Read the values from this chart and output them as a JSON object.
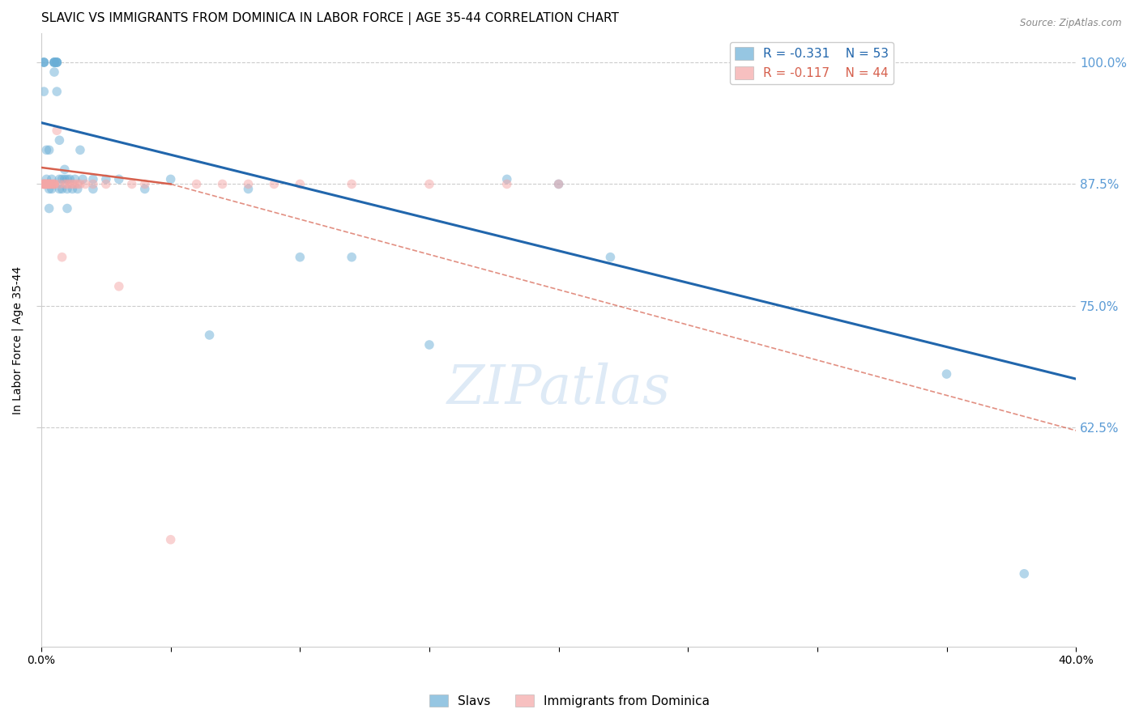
{
  "title": "SLAVIC VS IMMIGRANTS FROM DOMINICA IN LABOR FORCE | AGE 35-44 CORRELATION CHART",
  "source_text": "Source: ZipAtlas.com",
  "ylabel": "In Labor Force | Age 35-44",
  "xlim": [
    0.0,
    0.4
  ],
  "ylim": [
    0.4,
    1.03
  ],
  "yticks": [
    0.625,
    0.75,
    0.875,
    1.0
  ],
  "ytick_labels": [
    "62.5%",
    "75.0%",
    "87.5%",
    "100.0%"
  ],
  "xticks": [
    0.0,
    0.05,
    0.1,
    0.15,
    0.2,
    0.25,
    0.3,
    0.35,
    0.4
  ],
  "xtick_labels": [
    "0.0%",
    "",
    "",
    "",
    "",
    "",
    "",
    "",
    "40.0%"
  ],
  "blue_scatter": {
    "x": [
      0.001,
      0.001,
      0.001,
      0.001,
      0.002,
      0.002,
      0.003,
      0.003,
      0.003,
      0.004,
      0.004,
      0.005,
      0.005,
      0.005,
      0.005,
      0.005,
      0.006,
      0.006,
      0.006,
      0.006,
      0.006,
      0.007,
      0.007,
      0.007,
      0.008,
      0.008,
      0.009,
      0.009,
      0.01,
      0.01,
      0.01,
      0.011,
      0.012,
      0.013,
      0.014,
      0.015,
      0.016,
      0.02,
      0.02,
      0.025,
      0.03,
      0.04,
      0.05,
      0.065,
      0.08,
      0.1,
      0.12,
      0.15,
      0.18,
      0.2,
      0.22,
      0.35,
      0.38
    ],
    "y": [
      1.0,
      1.0,
      1.0,
      0.97,
      0.91,
      0.88,
      0.91,
      0.87,
      0.85,
      0.88,
      0.87,
      1.0,
      1.0,
      1.0,
      1.0,
      0.99,
      1.0,
      1.0,
      1.0,
      1.0,
      0.97,
      0.92,
      0.88,
      0.87,
      0.88,
      0.87,
      0.89,
      0.88,
      0.88,
      0.87,
      0.85,
      0.88,
      0.87,
      0.88,
      0.87,
      0.91,
      0.88,
      0.88,
      0.87,
      0.88,
      0.88,
      0.87,
      0.88,
      0.72,
      0.87,
      0.8,
      0.8,
      0.71,
      0.88,
      0.875,
      0.8,
      0.68,
      0.475
    ]
  },
  "pink_scatter": {
    "x": [
      0.001,
      0.001,
      0.001,
      0.001,
      0.001,
      0.002,
      0.002,
      0.002,
      0.002,
      0.003,
      0.003,
      0.003,
      0.003,
      0.004,
      0.004,
      0.005,
      0.005,
      0.005,
      0.006,
      0.007,
      0.008,
      0.009,
      0.01,
      0.011,
      0.012,
      0.013,
      0.014,
      0.015,
      0.017,
      0.02,
      0.025,
      0.03,
      0.035,
      0.04,
      0.05,
      0.06,
      0.07,
      0.08,
      0.09,
      0.1,
      0.12,
      0.15,
      0.18,
      0.2
    ],
    "y": [
      0.875,
      0.875,
      0.875,
      0.875,
      0.875,
      0.875,
      0.875,
      0.875,
      0.875,
      0.875,
      0.875,
      0.875,
      0.875,
      0.875,
      0.875,
      0.875,
      0.875,
      0.875,
      0.93,
      0.875,
      0.8,
      0.875,
      0.875,
      0.875,
      0.875,
      0.875,
      0.875,
      0.875,
      0.875,
      0.875,
      0.875,
      0.77,
      0.875,
      0.875,
      0.51,
      0.875,
      0.875,
      0.875,
      0.875,
      0.875,
      0.875,
      0.875,
      0.875,
      0.875
    ]
  },
  "blue_line": {
    "x": [
      0.0,
      0.4
    ],
    "y": [
      0.938,
      0.675
    ]
  },
  "pink_solid_line": {
    "x": [
      0.0,
      0.05
    ],
    "y": [
      0.892,
      0.875
    ]
  },
  "pink_dash_line": {
    "x": [
      0.05,
      0.4
    ],
    "y": [
      0.875,
      0.622
    ]
  },
  "legend_R_blue": "R = -0.331",
  "legend_N_blue": "N = 53",
  "legend_R_pink": "R = -0.117",
  "legend_N_pink": "N = 44",
  "blue_color": "#6aaed6",
  "pink_color": "#f4a6a6",
  "blue_line_color": "#2166ac",
  "pink_line_color": "#d6604d",
  "watermark": "ZIPatlas",
  "background_color": "#FFFFFF",
  "grid_color": "#CCCCCC",
  "right_tick_color": "#5B9BD5",
  "title_fontsize": 11,
  "axis_label_fontsize": 10,
  "tick_fontsize": 10,
  "marker_size": 70
}
